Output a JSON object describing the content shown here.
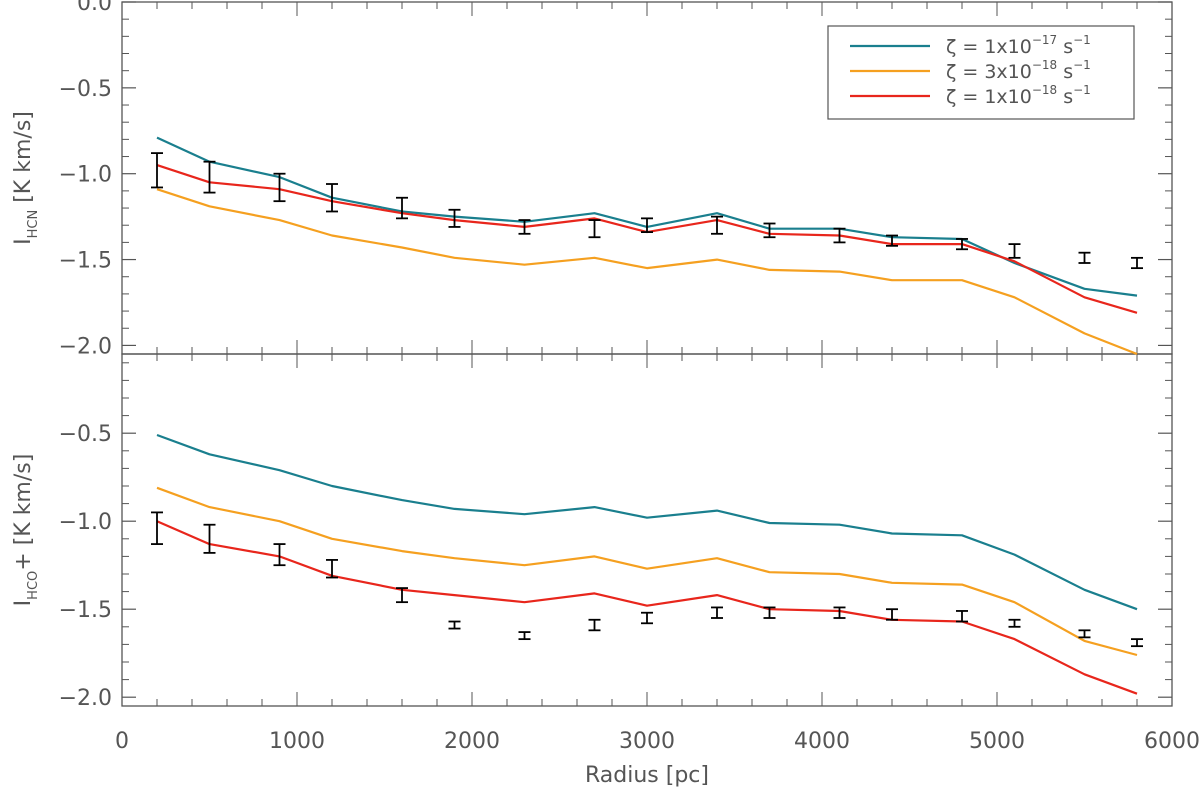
{
  "chart_data": {
    "type": "line",
    "shared_x": {
      "label": "Radius [pc]",
      "range": [
        0,
        6000
      ],
      "ticks": [
        0,
        1000,
        2000,
        3000,
        4000,
        5000,
        6000
      ],
      "values": [
        200,
        500,
        900,
        1200,
        1600,
        1900,
        2300,
        2700,
        3000,
        3400,
        3700,
        4100,
        4400,
        4800,
        5100,
        5500,
        5800
      ]
    },
    "legend": {
      "placement": "top-right",
      "entries": [
        {
          "symbol": "ζ",
          "eq": "=",
          "coef": "1x10",
          "exp": "−17",
          "unit": "s",
          "unit_exp": "−1",
          "color": "#1a7f8e"
        },
        {
          "symbol": "ζ",
          "eq": "=",
          "coef": "3x10",
          "exp": "−18",
          "unit": "s",
          "unit_exp": "−1",
          "color": "#f5a020"
        },
        {
          "symbol": "ζ",
          "eq": "=",
          "coef": "1x10",
          "exp": "−18",
          "unit": "s",
          "unit_exp": "−1",
          "color": "#e8261c"
        }
      ]
    },
    "panels": [
      {
        "name": "HCN",
        "ylabel_main": "I",
        "ylabel_sub": "HCN",
        "ylabel_rest": " [K km/s]",
        "ylim": [
          -2.05,
          0.0
        ],
        "ticks": [
          0.0,
          -0.5,
          -1.0,
          -1.5,
          -2.0
        ],
        "tick_labels": [
          "0.0",
          "−0.5",
          "−1.0",
          "−1.5",
          "−2.0"
        ],
        "series": [
          {
            "name": "zeta=1e-17",
            "color": "#1a7f8e",
            "values": [
              -0.79,
              -0.93,
              -1.02,
              -1.14,
              -1.22,
              -1.25,
              -1.28,
              -1.23,
              -1.31,
              -1.23,
              -1.32,
              -1.32,
              -1.37,
              -1.38,
              -1.52,
              -1.67,
              -1.71
            ]
          },
          {
            "name": "zeta=3e-18",
            "color": "#f5a020",
            "values": [
              -1.09,
              -1.19,
              -1.27,
              -1.36,
              -1.43,
              -1.49,
              -1.53,
              -1.49,
              -1.55,
              -1.5,
              -1.56,
              -1.57,
              -1.62,
              -1.62,
              -1.72,
              -1.93,
              -2.05
            ]
          },
          {
            "name": "zeta=1e-18",
            "color": "#e8261c",
            "values": [
              -0.95,
              -1.05,
              -1.09,
              -1.16,
              -1.23,
              -1.27,
              -1.31,
              -1.26,
              -1.34,
              -1.27,
              -1.35,
              -1.36,
              -1.41,
              -1.41,
              -1.51,
              -1.72,
              -1.81
            ]
          }
        ],
        "observations": {
          "values": [
            -0.98,
            -1.02,
            -1.08,
            -1.14,
            -1.2,
            -1.26,
            -1.31,
            -1.32,
            -1.3,
            -1.3,
            -1.33,
            -1.36,
            -1.39,
            -1.41,
            -1.45,
            -1.49,
            -1.52
          ],
          "errors": [
            0.1,
            0.09,
            0.08,
            0.08,
            0.06,
            0.05,
            0.04,
            0.05,
            0.04,
            0.05,
            0.04,
            0.04,
            0.03,
            0.03,
            0.04,
            0.03,
            0.03
          ]
        }
      },
      {
        "name": "HCO+",
        "ylabel_main": "I",
        "ylabel_sub": "HCO",
        "ylabel_rest": "+ [K km/s]",
        "ylim": [
          -2.05,
          -0.05
        ],
        "ticks": [
          -0.5,
          -1.0,
          -1.5,
          -2.0
        ],
        "tick_labels": [
          "−0.5",
          "−1.0",
          "−1.5",
          "−2.0"
        ],
        "series": [
          {
            "name": "zeta=1e-17",
            "color": "#1a7f8e",
            "values": [
              -0.51,
              -0.62,
              -0.71,
              -0.8,
              -0.88,
              -0.93,
              -0.96,
              -0.92,
              -0.98,
              -0.94,
              -1.01,
              -1.02,
              -1.07,
              -1.08,
              -1.19,
              -1.39,
              -1.5
            ]
          },
          {
            "name": "zeta=3e-18",
            "color": "#f5a020",
            "values": [
              -0.81,
              -0.92,
              -1.0,
              -1.1,
              -1.17,
              -1.21,
              -1.25,
              -1.2,
              -1.27,
              -1.21,
              -1.29,
              -1.3,
              -1.35,
              -1.36,
              -1.46,
              -1.68,
              -1.76
            ]
          },
          {
            "name": "zeta=1e-18",
            "color": "#e8261c",
            "values": [
              -1.0,
              -1.13,
              -1.2,
              -1.31,
              -1.39,
              -1.42,
              -1.46,
              -1.41,
              -1.48,
              -1.42,
              -1.5,
              -1.51,
              -1.56,
              -1.57,
              -1.67,
              -1.87,
              -1.98
            ]
          }
        ],
        "observations": {
          "values": [
            -1.04,
            -1.1,
            -1.19,
            -1.27,
            -1.42,
            -1.59,
            -1.65,
            -1.59,
            -1.55,
            -1.52,
            -1.52,
            -1.52,
            -1.53,
            -1.54,
            -1.58,
            -1.64,
            -1.69
          ],
          "errors": [
            0.09,
            0.08,
            0.06,
            0.05,
            0.04,
            0.02,
            0.02,
            0.03,
            0.03,
            0.03,
            0.03,
            0.03,
            0.03,
            0.03,
            0.02,
            0.02,
            0.02
          ]
        }
      }
    ]
  }
}
